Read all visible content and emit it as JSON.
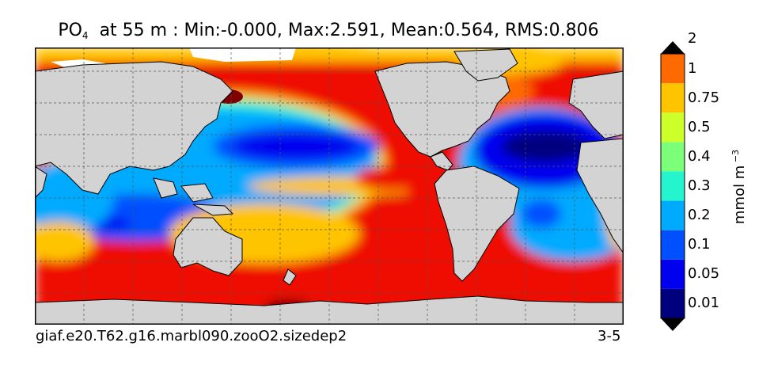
{
  "title": {
    "variable": "PO",
    "subscript": "4",
    "rest": "at 55 m : Min:-0.000, Max:2.591, Mean:0.564, RMS:0.806"
  },
  "footer": {
    "case_name": "giaf.e20.T62.g16.marbl090.zooO2.sizedep2",
    "page": "3-5"
  },
  "colorbar": {
    "unit": "mmol m",
    "unit_exponent": "−3",
    "tick_labels": [
      "0.01",
      "0.05",
      "0.1",
      "0.2",
      "0.3",
      "0.4",
      "0.5",
      "0.75",
      "1",
      "2"
    ],
    "colors": [
      "#00007f",
      "#0000ee",
      "#0050ff",
      "#00aaff",
      "#25f5cf",
      "#7cff79",
      "#cdff29",
      "#ffc400",
      "#ff6a00",
      "#ee1000",
      "#7f0000"
    ]
  },
  "map": {
    "land_color": "#d3d3d3",
    "grid": true
  }
}
